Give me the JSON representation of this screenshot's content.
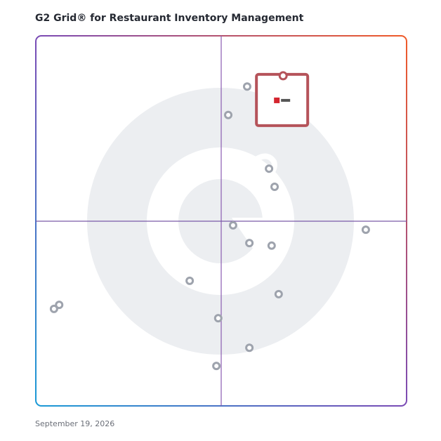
{
  "chart_data": {
    "type": "scatter",
    "title": "G2 Grid® for Restaurant Inventory Management",
    "date": "September 19, 2026",
    "xlim": [
      0,
      100
    ],
    "ylim": [
      0,
      100
    ],
    "x": [
      57.0,
      51.9,
      62.9,
      64.4,
      53.2,
      89.0,
      57.6,
      63.6,
      41.5,
      65.5,
      6.3,
      4.9,
      49.2,
      57.6,
      48.7
    ],
    "values": [
      86.3,
      78.6,
      64.1,
      59.2,
      48.8,
      47.6,
      44.0,
      43.3,
      33.8,
      30.2,
      27.3,
      26.2,
      23.7,
      15.7,
      10.8
    ],
    "color": "#9ea3ad",
    "highlight_x": 66.7,
    "highlight_value": 89.2,
    "highlight_color": "#b5535a"
  }
}
